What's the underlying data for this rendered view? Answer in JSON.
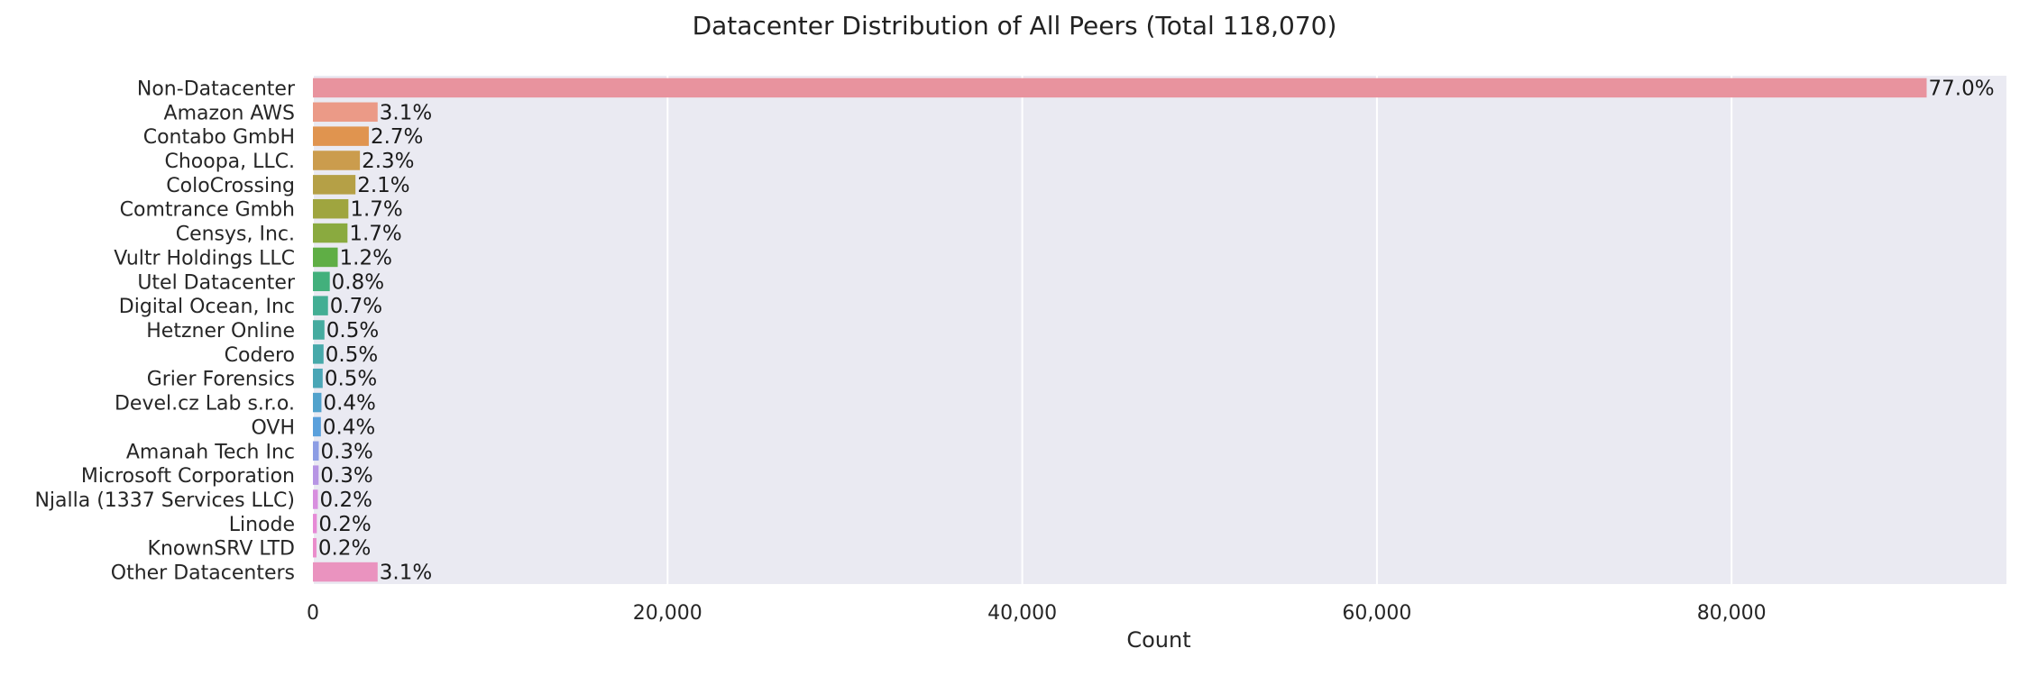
{
  "chart_data": {
    "type": "bar",
    "orientation": "horizontal",
    "title": "Datacenter Distribution of All Peers (Total 118,070)",
    "xlabel": "Count",
    "ylabel": "",
    "xlim": [
      0,
      95500
    ],
    "xticks": [
      0,
      20000,
      40000,
      60000,
      80000
    ],
    "xtick_labels": [
      "0",
      "20,000",
      "40,000",
      "60,000",
      "80,000"
    ],
    "grid": true,
    "background": "#eaeaf2",
    "categories": [
      "Non-Datacenter",
      "Amazon AWS",
      "Contabo GmbH",
      "Choopa, LLC.",
      "ColoCrossing",
      "Comtrance Gmbh",
      "Censys, Inc.",
      "Vultr Holdings LLC",
      "Utel Datacenter",
      "Digital Ocean, Inc",
      "Hetzner Online",
      "Codero",
      "Grier Forensics",
      "Devel.cz Lab s.r.o.",
      "OVH",
      "Amanah Tech Inc",
      "Microsoft Corporation",
      "Njalla (1337 Services LLC)",
      "Linode",
      "KnownSRV LTD",
      "Other Datacenters"
    ],
    "values": [
      91000,
      3650,
      3150,
      2650,
      2400,
      2000,
      1950,
      1400,
      950,
      850,
      650,
      600,
      550,
      480,
      450,
      330,
      320,
      280,
      220,
      200,
      3650
    ],
    "labels": [
      "77.0%",
      "3.1%",
      "2.7%",
      "2.3%",
      "2.1%",
      "1.7%",
      "1.7%",
      "1.2%",
      "0.8%",
      "0.7%",
      "0.5%",
      "0.5%",
      "0.5%",
      "0.4%",
      "0.4%",
      "0.3%",
      "0.3%",
      "0.2%",
      "0.2%",
      "0.2%",
      "3.1%"
    ],
    "colors": [
      "#e8939e",
      "#eb9a87",
      "#e0944f",
      "#cb9c4d",
      "#b5a046",
      "#9fa53f",
      "#8aaa3f",
      "#5fae45",
      "#42b07c",
      "#43ae94",
      "#45ab9f",
      "#47a9aa",
      "#4aa6b6",
      "#51a2cc",
      "#5aa0dc",
      "#8c9de4",
      "#b795e4",
      "#d88fdf",
      "#e68ad6",
      "#ea8ccb",
      "#ea93bf"
    ]
  }
}
